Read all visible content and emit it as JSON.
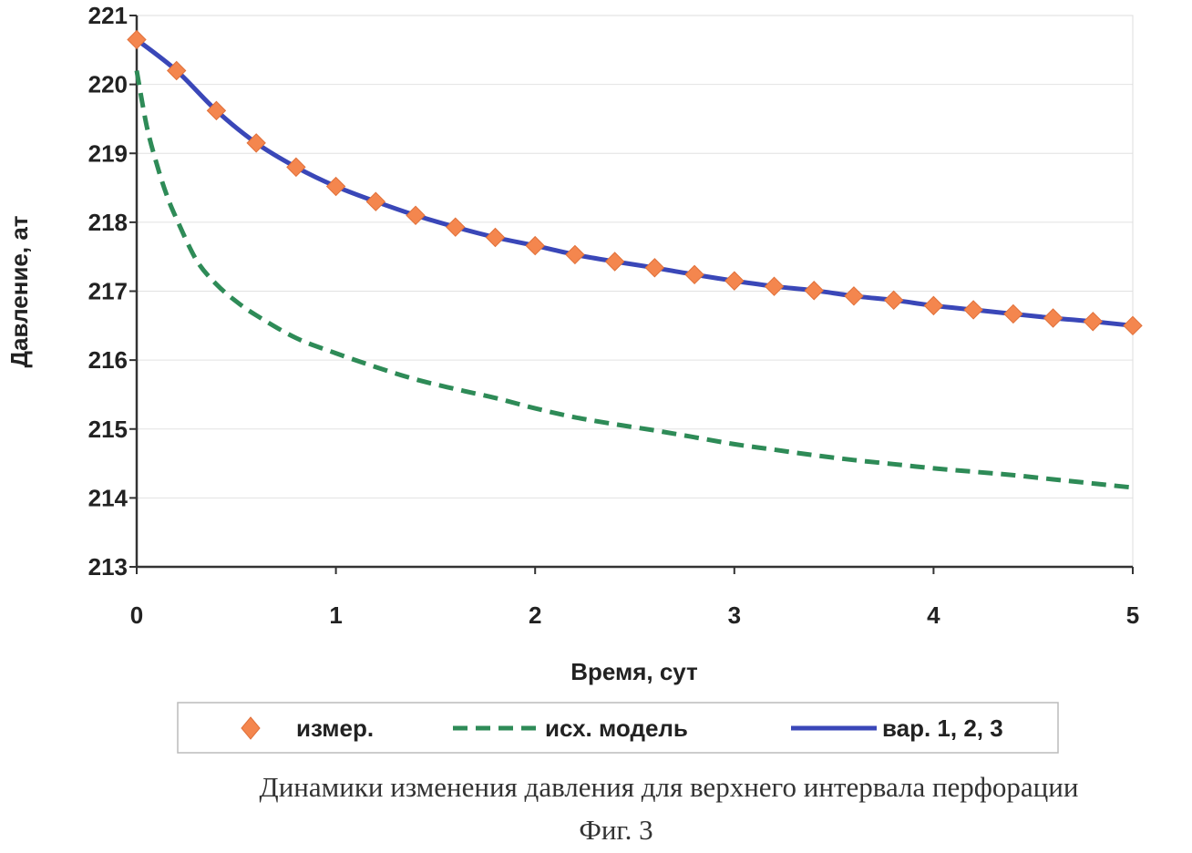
{
  "chart_data": {
    "type": "line",
    "title": "",
    "xlabel": "Время, сут",
    "ylabel": "Давление, ат",
    "xlim": [
      0,
      5
    ],
    "ylim": [
      213,
      221
    ],
    "x_ticks": [
      "0",
      "1",
      "2",
      "3",
      "4",
      "5"
    ],
    "y_ticks": [
      "213",
      "214",
      "215",
      "216",
      "217",
      "218",
      "219",
      "220",
      "221"
    ],
    "grid": "horizontal",
    "legend_position": "bottom",
    "series": [
      {
        "name": "измер.",
        "style": "markers",
        "marker": "diamond",
        "color": "#f4864e",
        "x": [
          0,
          0.2,
          0.4,
          0.6,
          0.8,
          1.0,
          1.2,
          1.4,
          1.6,
          1.8,
          2.0,
          2.2,
          2.4,
          2.6,
          2.8,
          3.0,
          3.2,
          3.4,
          3.6,
          3.8,
          4.0,
          4.2,
          4.4,
          4.6,
          4.8,
          5.0
        ],
        "y": [
          220.65,
          220.2,
          219.62,
          219.15,
          218.8,
          218.52,
          218.3,
          218.1,
          217.93,
          217.78,
          217.66,
          217.53,
          217.43,
          217.34,
          217.24,
          217.15,
          217.07,
          217.01,
          216.93,
          216.87,
          216.79,
          216.73,
          216.67,
          216.61,
          216.56,
          216.5
        ]
      },
      {
        "name": "исх. модель",
        "style": "dashed",
        "color": "#2e8b57",
        "x": [
          0,
          0.05,
          0.1,
          0.15,
          0.2,
          0.3,
          0.4,
          0.5,
          0.6,
          0.8,
          1.0,
          1.2,
          1.4,
          1.6,
          1.8,
          2.0,
          2.2,
          2.4,
          2.6,
          2.8,
          3.0,
          3.2,
          3.4,
          3.6,
          3.8,
          4.0,
          4.2,
          4.4,
          4.6,
          4.8,
          5.0
        ],
        "y": [
          220.2,
          219.4,
          218.85,
          218.4,
          218.05,
          217.45,
          217.1,
          216.85,
          216.65,
          216.32,
          216.1,
          215.9,
          215.72,
          215.58,
          215.45,
          215.3,
          215.17,
          215.07,
          214.98,
          214.88,
          214.78,
          214.7,
          214.62,
          214.55,
          214.49,
          214.43,
          214.38,
          214.33,
          214.27,
          214.21,
          214.15
        ]
      },
      {
        "name": "вар. 1, 2, 3",
        "style": "solid",
        "color": "#3a47b8",
        "x": [
          0,
          0.2,
          0.4,
          0.6,
          0.8,
          1.0,
          1.2,
          1.4,
          1.6,
          1.8,
          2.0,
          2.2,
          2.4,
          2.6,
          2.8,
          3.0,
          3.2,
          3.4,
          3.6,
          3.8,
          4.0,
          4.2,
          4.4,
          4.6,
          4.8,
          5.0
        ],
        "y": [
          220.65,
          220.2,
          219.62,
          219.15,
          218.8,
          218.52,
          218.3,
          218.1,
          217.93,
          217.78,
          217.66,
          217.53,
          217.43,
          217.34,
          217.24,
          217.15,
          217.07,
          217.01,
          216.93,
          216.87,
          216.79,
          216.73,
          216.67,
          216.61,
          216.56,
          216.5
        ]
      }
    ]
  },
  "legend": {
    "measured_label": "измер.",
    "model_label": "исх. модель",
    "variants_label": "вар. 1, 2, 3"
  },
  "caption": {
    "line1": "Динамики изменения давления для верхнего интервала перфорации",
    "line2": "Фиг. 3"
  }
}
